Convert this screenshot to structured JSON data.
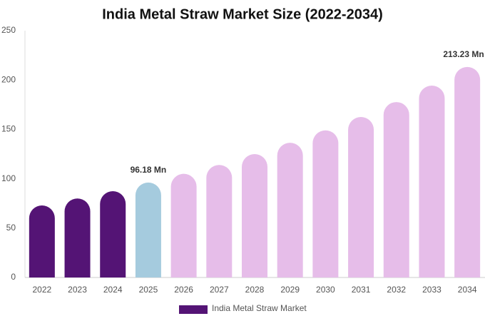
{
  "chart_data": {
    "type": "bar",
    "title": "India Metal Straw Market Size (2022-2034)",
    "categories": [
      "2022",
      "2023",
      "2024",
      "2025",
      "2026",
      "2027",
      "2028",
      "2029",
      "2030",
      "2031",
      "2032",
      "2033",
      "2034"
    ],
    "series": [
      {
        "name": "India Metal Straw Market",
        "color": "#541475",
        "values": [
          73,
          80,
          87.4,
          96.18,
          105,
          114,
          125,
          136.5,
          149,
          162.6,
          177.7,
          194.4,
          213.23
        ],
        "colors": [
          "#541475",
          "#541475",
          "#541475",
          "#a5cbde",
          "#e6bde9",
          "#e6bde9",
          "#e6bde9",
          "#e6bde9",
          "#e6bde9",
          "#e6bde9",
          "#e6bde9",
          "#e6bde9",
          "#e6bde9"
        ],
        "value_labels": [
          null,
          null,
          null,
          "96.18 Mn",
          null,
          null,
          null,
          null,
          null,
          null,
          null,
          null,
          "213.23 Mn"
        ]
      }
    ],
    "ylim": [
      0,
      250
    ],
    "yticks": [
      0,
      50,
      100,
      150,
      200,
      250
    ],
    "grid": false
  }
}
